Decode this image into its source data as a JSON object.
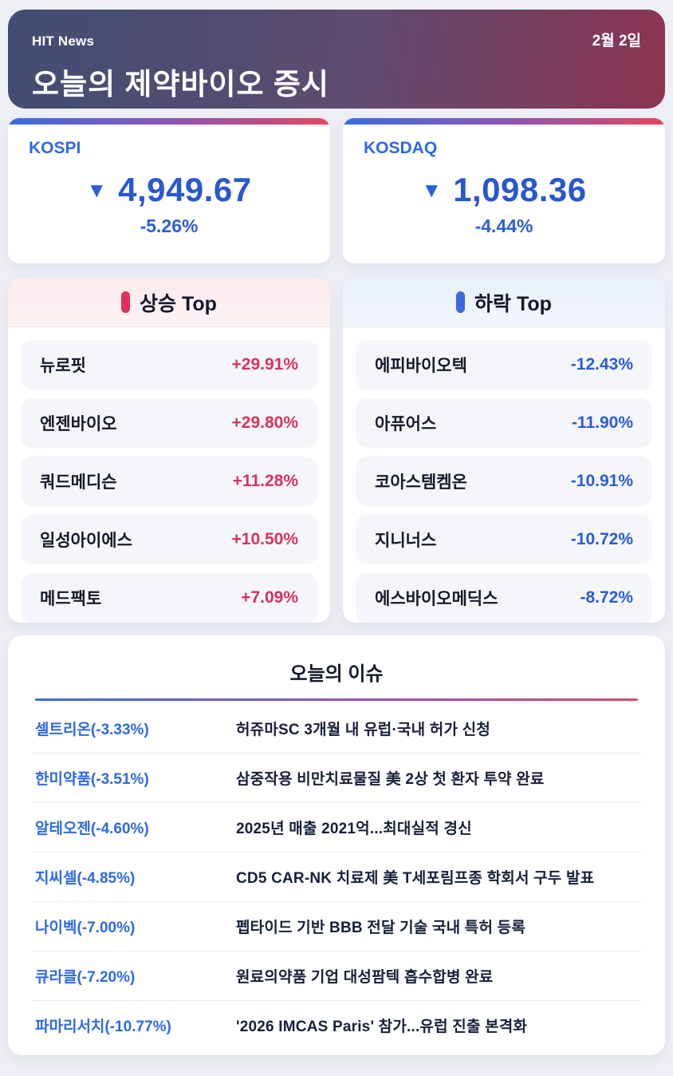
{
  "header": {
    "brand": "HIT News",
    "date": "2월 2일",
    "title": "오늘의 제약바이오 증시"
  },
  "indices": [
    {
      "name": "KOSPI",
      "direction_icon": "▼",
      "value": "4,949.67",
      "change": "-5.26%"
    },
    {
      "name": "KOSDAQ",
      "direction_icon": "▼",
      "value": "1,098.36",
      "change": "-4.44%"
    }
  ],
  "gainers": {
    "title": "상승 Top",
    "items": [
      {
        "name": "뉴로핏",
        "change": "+29.91%"
      },
      {
        "name": "엔젠바이오",
        "change": "+29.80%"
      },
      {
        "name": "쿼드메디슨",
        "change": "+11.28%"
      },
      {
        "name": "일성아이에스",
        "change": "+10.50%"
      },
      {
        "name": "메드팩토",
        "change": "+7.09%"
      }
    ]
  },
  "losers": {
    "title": "하락 Top",
    "items": [
      {
        "name": "에피바이오텍",
        "change": "-12.43%"
      },
      {
        "name": "아퓨어스",
        "change": "-11.90%"
      },
      {
        "name": "코아스템켐온",
        "change": "-10.91%"
      },
      {
        "name": "지니너스",
        "change": "-10.72%"
      },
      {
        "name": "에스바이오메딕스",
        "change": "-8.72%"
      }
    ]
  },
  "issues": {
    "title": "오늘의 이슈",
    "items": [
      {
        "stock": "셀트리온(-3.33%)",
        "headline": "허쥬마SC 3개월 내 유럽·국내 허가 신청"
      },
      {
        "stock": "한미약품(-3.51%)",
        "headline": "삼중작용 비만치료물질 美 2상 첫 환자 투약 완료"
      },
      {
        "stock": "알테오젠(-4.60%)",
        "headline": "2025년 매출 2021억...최대실적 경신"
      },
      {
        "stock": "지씨셀(-4.85%)",
        "headline": "CD5 CAR-NK 치료제 美 T세포림프종 학회서 구두 발표"
      },
      {
        "stock": "나이벡(-7.00%)",
        "headline": "펩타이드 기반 BBB 전달 기술 국내 특허 등록"
      },
      {
        "stock": "큐라클(-7.20%)",
        "headline": "원료의약품 기업 대성팜텍 흡수합병 완료"
      },
      {
        "stock": "파마리서치(-10.77%)",
        "headline": "'2026 IMCAS Paris' 참가...유럽 진출 본격화"
      }
    ]
  },
  "colors": {
    "accent_blue": "#2e6ae0",
    "index_blue": "#2857d0",
    "accent_red": "#e0315e",
    "dark_text": "#14182b",
    "header_gradient_start": "#414d72",
    "header_gradient_end": "#8d3450",
    "bar_gradient_start": "#3c6ce3",
    "bar_gradient_end": "#e8445e",
    "page_background": "#edeff4"
  }
}
